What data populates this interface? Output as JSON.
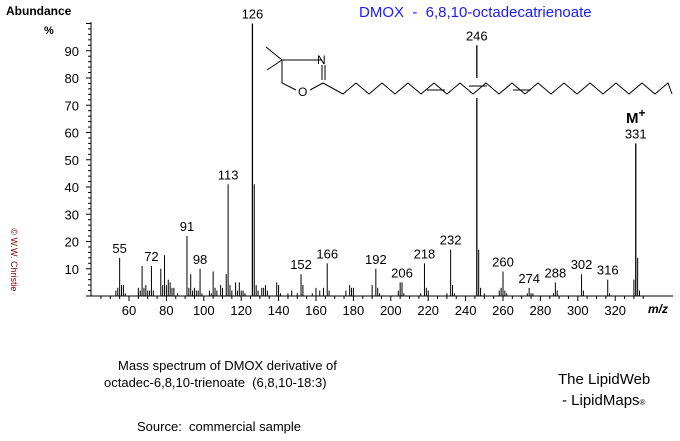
{
  "chart_data": {
    "type": "bar",
    "title": "DMOX  -  6,8,10-octadecatrienoate",
    "ylabel": "Abundance",
    "yunit": "%",
    "xlabel": "m/z",
    "xlim": [
      40,
      338
    ],
    "ylim": [
      0,
      100
    ],
    "xticks": [
      60,
      80,
      100,
      120,
      140,
      160,
      180,
      200,
      220,
      240,
      260,
      280,
      300,
      320
    ],
    "yticks": [
      10,
      20,
      30,
      40,
      50,
      60,
      70,
      80,
      90
    ],
    "grid": false,
    "peaks": [
      [
        53,
        2
      ],
      [
        54,
        3
      ],
      [
        55,
        14
      ],
      [
        56,
        4
      ],
      [
        57,
        4
      ],
      [
        58,
        1
      ],
      [
        65,
        3
      ],
      [
        66,
        2
      ],
      [
        67,
        11
      ],
      [
        68,
        3
      ],
      [
        69,
        4
      ],
      [
        70,
        2
      ],
      [
        71,
        2
      ],
      [
        72,
        11
      ],
      [
        73,
        2
      ],
      [
        77,
        10
      ],
      [
        78,
        4
      ],
      [
        79,
        15
      ],
      [
        80,
        4
      ],
      [
        81,
        6
      ],
      [
        82,
        5
      ],
      [
        83,
        3
      ],
      [
        84,
        3
      ],
      [
        86,
        1
      ],
      [
        91,
        22
      ],
      [
        92,
        3
      ],
      [
        93,
        8
      ],
      [
        94,
        2
      ],
      [
        95,
        3
      ],
      [
        96,
        2
      ],
      [
        97,
        2
      ],
      [
        98,
        10
      ],
      [
        99,
        1
      ],
      [
        103,
        2
      ],
      [
        104,
        1
      ],
      [
        105,
        9
      ],
      [
        106,
        3
      ],
      [
        107,
        2
      ],
      [
        109,
        4
      ],
      [
        110,
        3
      ],
      [
        112,
        8
      ],
      [
        113,
        41
      ],
      [
        114,
        4
      ],
      [
        115,
        2
      ],
      [
        117,
        5
      ],
      [
        118,
        2
      ],
      [
        119,
        5
      ],
      [
        120,
        2
      ],
      [
        121,
        2
      ],
      [
        122,
        1
      ],
      [
        126,
        100
      ],
      [
        127,
        41
      ],
      [
        128,
        4
      ],
      [
        129,
        2
      ],
      [
        131,
        3
      ],
      [
        132,
        3
      ],
      [
        133,
        4
      ],
      [
        134,
        2
      ],
      [
        139,
        5
      ],
      [
        140,
        4
      ],
      [
        141,
        1
      ],
      [
        145,
        1
      ],
      [
        147,
        2
      ],
      [
        150,
        1
      ],
      [
        152,
        8
      ],
      [
        153,
        4
      ],
      [
        158,
        1
      ],
      [
        160,
        3
      ],
      [
        162,
        2
      ],
      [
        164,
        3
      ],
      [
        166,
        12
      ],
      [
        167,
        2
      ],
      [
        176,
        2
      ],
      [
        178,
        4
      ],
      [
        179,
        3
      ],
      [
        180,
        3
      ],
      [
        190,
        4
      ],
      [
        192,
        10
      ],
      [
        193,
        3
      ],
      [
        194,
        1
      ],
      [
        204,
        2
      ],
      [
        205,
        5
      ],
      [
        206,
        5
      ],
      [
        207,
        1
      ],
      [
        216,
        1
      ],
      [
        218,
        12
      ],
      [
        219,
        3
      ],
      [
        220,
        2
      ],
      [
        230,
        1
      ],
      [
        232,
        17
      ],
      [
        233,
        4
      ],
      [
        234,
        1
      ],
      [
        246,
        92
      ],
      [
        247,
        17
      ],
      [
        248,
        3
      ],
      [
        250,
        1
      ],
      [
        258,
        2
      ],
      [
        259,
        3
      ],
      [
        260,
        9
      ],
      [
        261,
        2
      ],
      [
        262,
        1
      ],
      [
        273,
        1
      ],
      [
        274,
        3
      ],
      [
        275,
        1
      ],
      [
        276,
        1
      ],
      [
        287,
        1
      ],
      [
        288,
        5
      ],
      [
        289,
        2
      ],
      [
        302,
        8
      ],
      [
        303,
        2
      ],
      [
        316,
        6
      ],
      [
        317,
        1
      ],
      [
        330,
        6
      ],
      [
        331,
        56
      ],
      [
        332,
        14
      ],
      [
        333,
        2
      ]
    ],
    "peak_labels": [
      55,
      72,
      91,
      98,
      113,
      126,
      152,
      166,
      192,
      206,
      218,
      232,
      246,
      260,
      274,
      288,
      302,
      316,
      331
    ],
    "annotations": {
      "molecular_ion": "M",
      "molecular_ion_sup": "+"
    }
  },
  "structure": {
    "atom_n": "N",
    "atom_o": "O"
  },
  "copyright": "© W.W. Christie",
  "caption": {
    "line1": "Mass spectrum of DMOX derivative of",
    "line2": "octadec-6,8,10-trienoate  (6,8,10-18:3)",
    "source": "Source:  commercial sample"
  },
  "branding": {
    "line1": "The LipidWeb",
    "line2": "- LipidMaps",
    "mark": "®"
  },
  "colors": {
    "title": "#1a1aff",
    "copyright": "#800000",
    "peaks": "#000000"
  }
}
